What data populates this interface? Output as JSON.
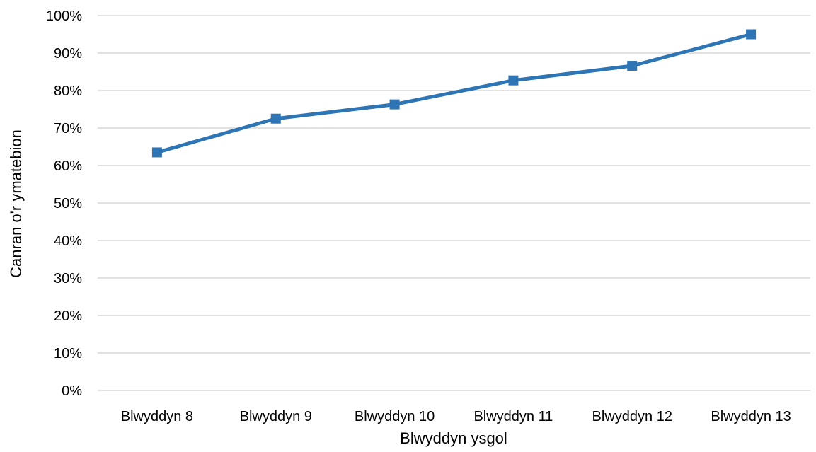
{
  "chart_data": {
    "type": "line",
    "title": "",
    "xlabel": "Blwyddyn ysgol",
    "ylabel": "Canran o'r ymatebion",
    "categories": [
      "Blwyddyn 8",
      "Blwyddyn 9",
      "Blwyddyn 10",
      "Blwyddyn 11",
      "Blwyddyn 12",
      "Blwyddyn 13"
    ],
    "series": [
      {
        "values": [
          63.5,
          72.5,
          76.3,
          82.7,
          86.6,
          95.0
        ],
        "color": "#2e75b6",
        "marker": "square"
      }
    ],
    "ylim": [
      0,
      100
    ],
    "y_ticks": [
      0,
      10,
      20,
      30,
      40,
      50,
      60,
      70,
      80,
      90,
      100
    ],
    "y_tick_labels": [
      "0%",
      "10%",
      "20%",
      "30%",
      "40%",
      "50%",
      "60%",
      "70%",
      "80%",
      "90%",
      "100%"
    ],
    "grid": true,
    "legend": "none",
    "gridline_color": "#d9d9d9"
  }
}
